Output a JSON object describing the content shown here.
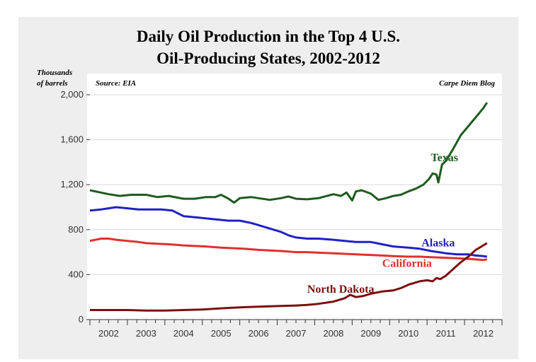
{
  "chart_data": {
    "type": "line",
    "title_line1": "Daily Oil Production in the Top 4 U.S.",
    "title_line2": "Oil-Producing States, 2002-2012",
    "ylabel_line1": "Thousands",
    "ylabel_line2": "of barrels",
    "source": "Source: EIA",
    "credit": "Carpe Diem Blog",
    "ylim": [
      0,
      2000
    ],
    "xlim": [
      2001.5,
      2012.5
    ],
    "yticks": [
      0,
      400,
      800,
      1200,
      1600,
      2000
    ],
    "ytick_labels": [
      "0",
      "400",
      "800",
      "1,200",
      "1,600",
      "2,000"
    ],
    "xticks": [
      2002,
      2003,
      2004,
      2005,
      2006,
      2007,
      2008,
      2009,
      2010,
      2011,
      2012
    ],
    "xtick_labels": [
      "2002",
      "2003",
      "2004",
      "2005",
      "2006",
      "2007",
      "2008",
      "2009",
      "2010",
      "2011",
      "2012"
    ],
    "grid": true,
    "legend": "inline labels",
    "series": [
      {
        "name": "Texas",
        "color": "#1f5a1f",
        "x": [
          2001.5,
          2002.0,
          2002.3,
          2002.6,
          2003.0,
          2003.3,
          2003.6,
          2004.0,
          2004.3,
          2004.6,
          2004.85,
          2005.0,
          2005.2,
          2005.35,
          2005.5,
          2005.8,
          2006.0,
          2006.3,
          2006.6,
          2006.8,
          2007.0,
          2007.3,
          2007.6,
          2008.0,
          2008.2,
          2008.35,
          2008.5,
          2008.6,
          2008.75,
          2009.0,
          2009.2,
          2009.4,
          2009.6,
          2009.8,
          2010.0,
          2010.2,
          2010.4,
          2010.55,
          2010.65,
          2010.75,
          2010.8,
          2010.9,
          2011.0,
          2011.2,
          2011.4,
          2011.6,
          2011.8,
          2012.0,
          2012.1
        ],
        "values": [
          1150,
          1115,
          1100,
          1110,
          1110,
          1090,
          1100,
          1075,
          1075,
          1090,
          1090,
          1110,
          1075,
          1040,
          1080,
          1090,
          1080,
          1065,
          1080,
          1095,
          1075,
          1070,
          1080,
          1115,
          1100,
          1130,
          1060,
          1140,
          1150,
          1120,
          1065,
          1080,
          1100,
          1110,
          1140,
          1165,
          1200,
          1250,
          1300,
          1290,
          1220,
          1380,
          1410,
          1520,
          1640,
          1720,
          1800,
          1880,
          1930
        ]
      },
      {
        "name": "Alaska",
        "color": "#2020c8",
        "x": [
          2001.5,
          2001.8,
          2002.0,
          2002.2,
          2002.5,
          2002.8,
          2003.0,
          2003.4,
          2003.7,
          2004.0,
          2004.3,
          2004.6,
          2004.9,
          2005.2,
          2005.5,
          2005.8,
          2006.0,
          2006.3,
          2006.6,
          2006.8,
          2007.0,
          2007.3,
          2007.6,
          2008.0,
          2008.3,
          2008.6,
          2009.0,
          2009.3,
          2009.6,
          2010.0,
          2010.3,
          2010.6,
          2011.0,
          2011.3,
          2011.6,
          2011.8,
          2012.0,
          2012.1
        ],
        "values": [
          970,
          980,
          990,
          1000,
          990,
          980,
          980,
          980,
          970,
          920,
          910,
          900,
          890,
          880,
          880,
          860,
          840,
          810,
          780,
          750,
          730,
          720,
          720,
          710,
          700,
          690,
          690,
          670,
          650,
          640,
          630,
          610,
          590,
          580,
          580,
          570,
          565,
          560
        ]
      },
      {
        "name": "California",
        "color": "#e03030",
        "x": [
          2001.5,
          2001.8,
          2002.0,
          2002.2,
          2002.5,
          2002.8,
          2003.0,
          2003.3,
          2003.6,
          2004.0,
          2004.3,
          2004.6,
          2005.0,
          2005.3,
          2005.6,
          2006.0,
          2006.3,
          2006.6,
          2007.0,
          2007.3,
          2007.6,
          2008.0,
          2008.3,
          2008.6,
          2009.0,
          2009.3,
          2009.6,
          2010.0,
          2010.3,
          2010.6,
          2011.0,
          2011.3,
          2011.6,
          2011.8,
          2012.0,
          2012.1
        ],
        "values": [
          700,
          720,
          720,
          710,
          700,
          690,
          680,
          675,
          670,
          660,
          655,
          650,
          640,
          635,
          630,
          620,
          615,
          610,
          600,
          600,
          595,
          590,
          585,
          580,
          575,
          570,
          565,
          560,
          560,
          555,
          550,
          545,
          540,
          535,
          530,
          535
        ]
      },
      {
        "name": "North Dakota",
        "color": "#7a1010",
        "x": [
          2001.5,
          2002.0,
          2002.5,
          2003.0,
          2003.5,
          2004.0,
          2004.5,
          2005.0,
          2005.3,
          2005.6,
          2006.0,
          2006.5,
          2007.0,
          2007.3,
          2007.6,
          2008.0,
          2008.3,
          2008.45,
          2008.6,
          2008.8,
          2009.0,
          2009.3,
          2009.6,
          2009.8,
          2010.0,
          2010.3,
          2010.5,
          2010.65,
          2010.75,
          2010.85,
          2011.0,
          2011.2,
          2011.4,
          2011.6,
          2011.8,
          2012.0,
          2012.1
        ],
        "values": [
          85,
          85,
          85,
          80,
          80,
          85,
          90,
          100,
          105,
          110,
          115,
          120,
          125,
          130,
          140,
          160,
          190,
          220,
          200,
          210,
          230,
          250,
          260,
          280,
          310,
          340,
          350,
          340,
          370,
          360,
          390,
          450,
          510,
          560,
          620,
          660,
          680
        ]
      }
    ],
    "annotations": [
      {
        "text": "Texas",
        "series": "Texas",
        "x": 2010.6,
        "y": 1410
      },
      {
        "text": "Alaska",
        "series": "Alaska",
        "x": 2010.35,
        "y": 650
      },
      {
        "text": "California",
        "series": "California",
        "x": 2009.3,
        "y": 470
      },
      {
        "text": "North Dakota",
        "series": "North Dakota",
        "x": 2007.3,
        "y": 240
      }
    ]
  }
}
